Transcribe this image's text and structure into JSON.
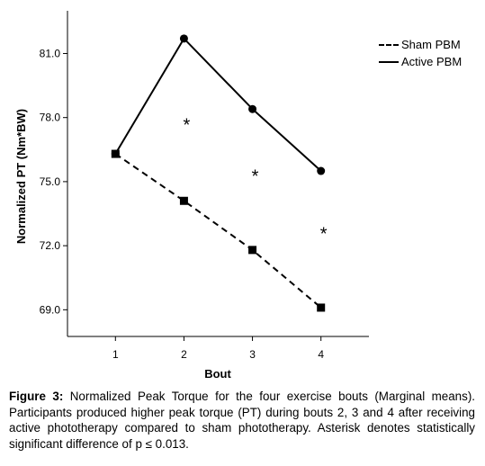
{
  "chart_data": {
    "type": "line",
    "xlabel": "Bout",
    "ylabel": "Normalized PT (Nm*BW)",
    "categories": [
      "1",
      "2",
      "3",
      "4"
    ],
    "x": [
      1,
      2,
      3,
      4
    ],
    "xlim": [
      0.3,
      4.7
    ],
    "ylim": [
      67.75,
      83.0
    ],
    "yticks": [
      "69.0",
      "72.0",
      "75.0",
      "78.0",
      "81.0"
    ],
    "ytick_values": [
      69.0,
      72.0,
      75.0,
      78.0,
      81.0
    ],
    "grid": false,
    "legend_position": "top-right",
    "series": [
      {
        "name": "Sham PBM",
        "style": "dashed",
        "marker": "square",
        "values": [
          76.3,
          74.1,
          71.8,
          69.1
        ]
      },
      {
        "name": "Active PBM",
        "style": "solid",
        "marker": "circle",
        "values": [
          76.3,
          81.7,
          78.4,
          75.5
        ]
      }
    ],
    "annotations": [
      {
        "text": "*",
        "x": 2,
        "y": 77.8
      },
      {
        "text": "*",
        "x": 3,
        "y": 75.4
      },
      {
        "text": "*",
        "x": 4,
        "y": 72.7
      }
    ]
  },
  "caption": {
    "label": "Figure 3:",
    "text": " Normalized Peak Torque for the four exercise bouts (Marginal means). Participants produced higher peak torque (PT) during bouts 2, 3 and 4 after receiving active phototherapy compared to sham phototherapy. Asterisk denotes statistically significant difference of p ≤ 0.013."
  },
  "colors": {
    "line": "#000000",
    "background": "#ffffff"
  }
}
